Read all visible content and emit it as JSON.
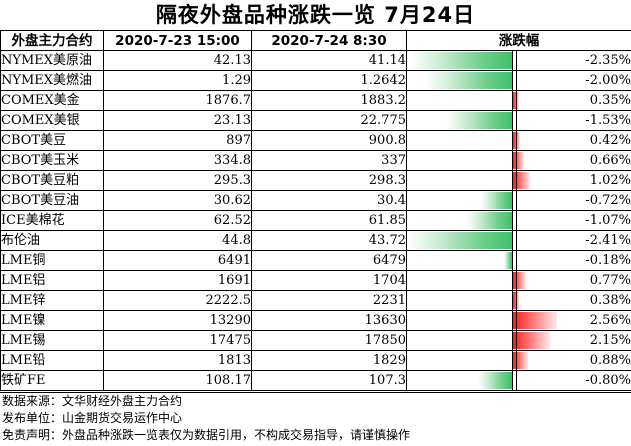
{
  "title": "隔夜外盘品种涨跌一览 7月24日",
  "headers": {
    "name": "外盘主力合约",
    "prev": "2020-7-23 15:00",
    "curr": "2020-7-24 8:30",
    "change": "涨跌幅"
  },
  "colors": {
    "up": "#ff1a1a",
    "down": "#3fbf6a"
  },
  "rows": [
    {
      "name": "NYMEX美原油",
      "prev": "42.13",
      "curr": "41.14",
      "pct": -2.35,
      "pct_text": "-2.35%"
    },
    {
      "name": "NYMEX美燃油",
      "prev": "1.29",
      "curr": "1.2642",
      "pct": -2.0,
      "pct_text": "-2.00%"
    },
    {
      "name": "COMEX美金",
      "prev": "1876.7",
      "curr": "1883.2",
      "pct": 0.35,
      "pct_text": "0.35%"
    },
    {
      "name": "COMEX美银",
      "prev": "23.13",
      "curr": "22.775",
      "pct": -1.53,
      "pct_text": "-1.53%"
    },
    {
      "name": "CBOT美豆",
      "prev": "897",
      "curr": "900.8",
      "pct": 0.42,
      "pct_text": "0.42%"
    },
    {
      "name": "CBOT美玉米",
      "prev": "334.8",
      "curr": "337",
      "pct": 0.66,
      "pct_text": "0.66%"
    },
    {
      "name": "CBOT美豆粕",
      "prev": "295.3",
      "curr": "298.3",
      "pct": 1.02,
      "pct_text": "1.02%"
    },
    {
      "name": "CBOT美豆油",
      "prev": "30.62",
      "curr": "30.4",
      "pct": -0.72,
      "pct_text": "-0.72%"
    },
    {
      "name": "ICE美棉花",
      "prev": "62.52",
      "curr": "61.85",
      "pct": -1.07,
      "pct_text": "-1.07%"
    },
    {
      "name": "布伦油",
      "prev": "44.8",
      "curr": "43.72",
      "pct": -2.41,
      "pct_text": "-2.41%"
    },
    {
      "name": "LME铜",
      "prev": "6491",
      "curr": "6479",
      "pct": -0.18,
      "pct_text": "-0.18%"
    },
    {
      "name": "LME铝",
      "prev": "1691",
      "curr": "1704",
      "pct": 0.77,
      "pct_text": "0.77%"
    },
    {
      "name": "LME锌",
      "prev": "2222.5",
      "curr": "2231",
      "pct": 0.38,
      "pct_text": "0.38%"
    },
    {
      "name": "LME镍",
      "prev": "13290",
      "curr": "13630",
      "pct": 2.56,
      "pct_text": "2.56%"
    },
    {
      "name": "LME锡",
      "prev": "17475",
      "curr": "17850",
      "pct": 2.15,
      "pct_text": "2.15%"
    },
    {
      "name": "LME铅",
      "prev": "1813",
      "curr": "1829",
      "pct": 0.88,
      "pct_text": "0.88%"
    },
    {
      "name": "铁矿FE",
      "prev": "108.17",
      "curr": "107.3",
      "pct": -0.8,
      "pct_text": "-0.80%"
    }
  ],
  "footer": {
    "source": "数据来源：文华财经外盘主力合约",
    "publisher": "发布单位：山金期货交易运作中心",
    "disclaimer": "免责声明：外盘品种涨跌一览表仅为数据引用，不构成交易指导，请谨慎操作"
  }
}
